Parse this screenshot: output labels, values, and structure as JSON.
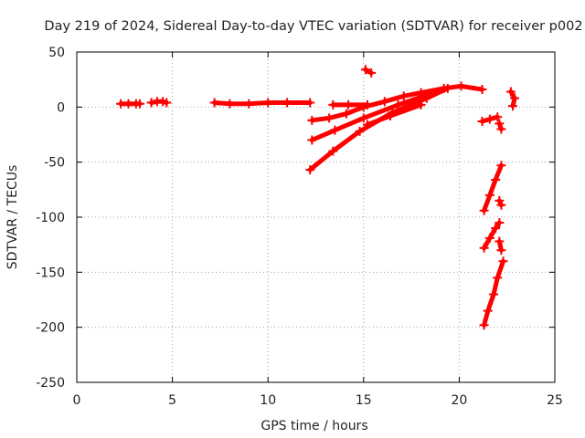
{
  "chart_data": {
    "type": "scatter",
    "title": "Day 219 of 2024, Sidereal Day-to-day VTEC variation (SDTVAR) for receiver p002",
    "xlabel": "GPS time / hours",
    "ylabel": "SDTVAR / TECUs",
    "xlim": [
      0,
      25
    ],
    "ylim": [
      -250,
      50
    ],
    "xticks": [
      0,
      5,
      10,
      15,
      20,
      25
    ],
    "yticks": [
      -250,
      -200,
      -150,
      -100,
      -50,
      0,
      50
    ],
    "xtick_labels": [
      "0",
      "5",
      "10",
      "15",
      "20",
      "25"
    ],
    "ytick_labels": [
      "-250",
      "-200",
      "-150",
      "-100",
      "-50",
      "0",
      "50"
    ],
    "grid": true,
    "marker": "+",
    "series": [
      {
        "name": "SDTVAR",
        "color": "#ff0000",
        "segments": [
          {
            "x": [
              2.3,
              2.7,
              3.1,
              3.3
            ],
            "y": [
              3,
              3,
              3,
              3
            ]
          },
          {
            "x": [
              3.9,
              4.2,
              4.5,
              4.7
            ],
            "y": [
              4,
              5,
              5,
              4
            ]
          },
          {
            "x": [
              7.2,
              8.0,
              9.0,
              10.0,
              11.0,
              12.2
            ],
            "y": [
              4,
              3,
              3,
              4,
              4,
              4
            ]
          },
          {
            "x": [
              12.3,
              13.2,
              14.1,
              15.0,
              16.1,
              17.1,
              18.0,
              19.2,
              20.1,
              21.2
            ],
            "y": [
              -12,
              -10,
              -6,
              0,
              5,
              10,
              13,
              17,
              19,
              16
            ]
          },
          {
            "x": [
              12.3,
              13.5,
              15.0,
              16.8,
              18.5
            ],
            "y": [
              -30,
              -21,
              -10,
              2,
              12
            ]
          },
          {
            "x": [
              12.2,
              13.4,
              14.8,
              16.5,
              18.3,
              19.4
            ],
            "y": [
              -57,
              -40,
              -22,
              -5,
              8,
              17
            ]
          },
          {
            "x": [
              13.4,
              14.2,
              15.2
            ],
            "y": [
              2,
              2,
              2
            ]
          },
          {
            "x": [
              15.1,
              15.4
            ],
            "y": [
              34,
              31
            ]
          },
          {
            "x": [
              15.2,
              16.4,
              18.0
            ],
            "y": [
              -16,
              -8,
              2
            ]
          },
          {
            "x": [
              21.2,
              21.6,
              22.0
            ],
            "y": [
              -13,
              -11,
              -9
            ]
          },
          {
            "x": [
              22.1,
              22.2
            ],
            "y": [
              -15,
              -20
            ]
          },
          {
            "x": [
              22.7,
              22.9,
              22.8
            ],
            "y": [
              14,
              8,
              1
            ]
          },
          {
            "x": [
              21.3,
              21.6,
              21.9,
              22.2
            ],
            "y": [
              -94,
              -80,
              -66,
              -53
            ]
          },
          {
            "x": [
              22.1,
              22.2
            ],
            "y": [
              -85,
              -89
            ]
          },
          {
            "x": [
              21.3,
              21.6,
              21.9,
              22.1
            ],
            "y": [
              -128,
              -119,
              -110,
              -105
            ]
          },
          {
            "x": [
              22.1,
              22.2
            ],
            "y": [
              -122,
              -130
            ]
          },
          {
            "x": [
              21.3,
              21.5,
              21.8,
              22.0,
              22.3
            ],
            "y": [
              -198,
              -185,
              -170,
              -155,
              -140
            ]
          }
        ]
      }
    ]
  }
}
